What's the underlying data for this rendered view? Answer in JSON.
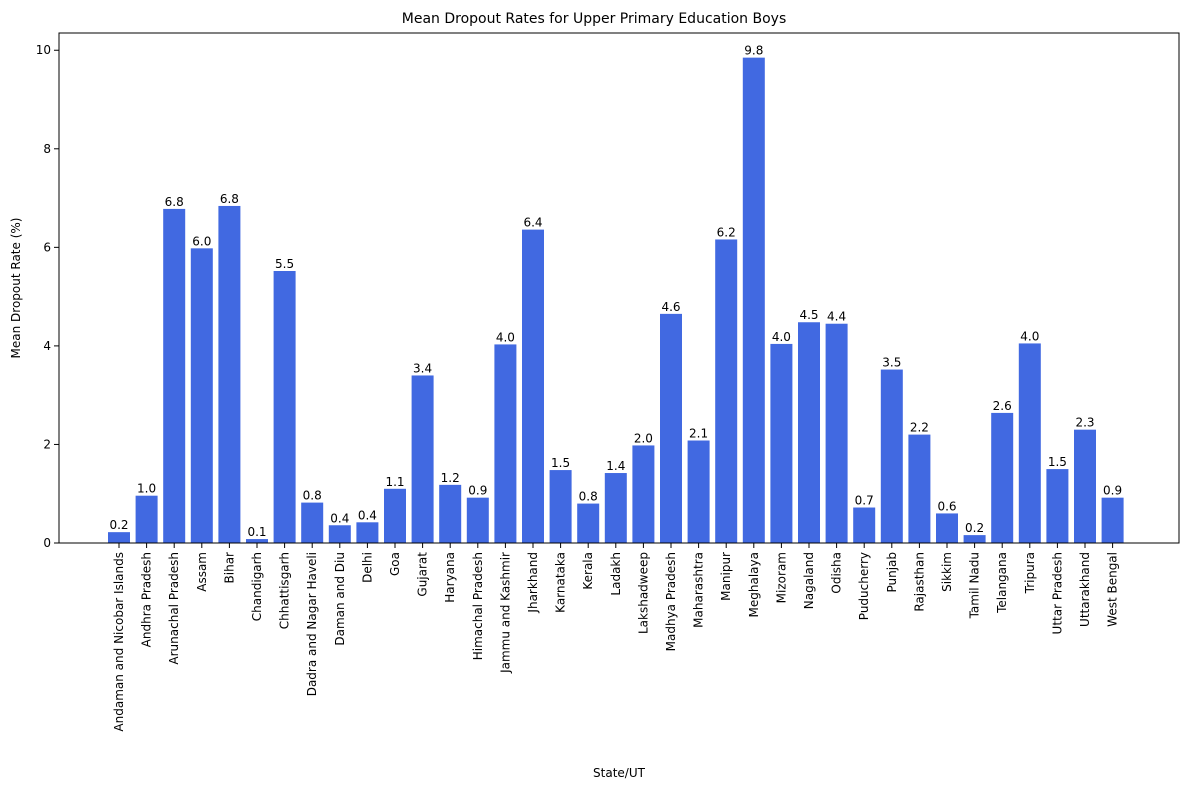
{
  "chart_data": {
    "type": "bar",
    "title": "Mean Dropout Rates for Upper Primary Education Boys",
    "xlabel": "State/UT",
    "ylabel": "Mean Dropout Rate (%)",
    "ylim": [
      0,
      10.35
    ],
    "yticks": [
      "0",
      "2",
      "4",
      "6",
      "8",
      "10"
    ],
    "grid": false,
    "bar_color": "#4169e1",
    "categories": [
      "Andaman and Nicobar Islands",
      "Andhra Pradesh",
      "Arunachal Pradesh",
      "Assam",
      "Bihar",
      "Chandigarh",
      "Chhattisgarh",
      "Dadra and Nagar Haveli",
      "Daman and Diu",
      "Delhi",
      "Goa",
      "Gujarat",
      "Haryana",
      "Himachal Pradesh",
      "Jammu and Kashmir",
      "Jharkhand",
      "Karnataka",
      "Kerala",
      "Ladakh",
      "Lakshadweep",
      "Madhya Pradesh",
      "Maharashtra",
      "Manipur",
      "Meghalaya",
      "Mizoram",
      "Nagaland",
      "Odisha",
      "Puducherry",
      "Punjab",
      "Rajasthan",
      "Sikkim",
      "Tamil Nadu",
      "Telangana",
      "Tripura",
      "Uttar Pradesh",
      "Uttarakhand",
      "West Bengal"
    ],
    "values": [
      0.22,
      0.96,
      6.78,
      5.98,
      6.84,
      0.08,
      5.52,
      0.82,
      0.36,
      0.42,
      1.1,
      3.4,
      1.18,
      0.92,
      4.03,
      6.36,
      1.48,
      0.8,
      1.42,
      1.98,
      4.65,
      2.08,
      6.16,
      9.85,
      4.04,
      4.48,
      4.45,
      0.72,
      3.52,
      2.2,
      0.6,
      0.16,
      2.64,
      4.05,
      1.5,
      2.3,
      0.92
    ],
    "data_labels": [
      "0.2",
      "1.0",
      "6.8",
      "6.0",
      "6.8",
      "0.1",
      "5.5",
      "0.8",
      "0.4",
      "0.4",
      "1.1",
      "3.4",
      "1.2",
      "0.9",
      "4.0",
      "6.4",
      "1.5",
      "0.8",
      "1.4",
      "2.0",
      "4.6",
      "2.1",
      "6.2",
      "9.8",
      "4.0",
      "4.5",
      "4.4",
      "0.7",
      "3.5",
      "2.2",
      "0.6",
      "0.2",
      "2.6",
      "4.0",
      "1.5",
      "2.3",
      "0.9"
    ]
  }
}
